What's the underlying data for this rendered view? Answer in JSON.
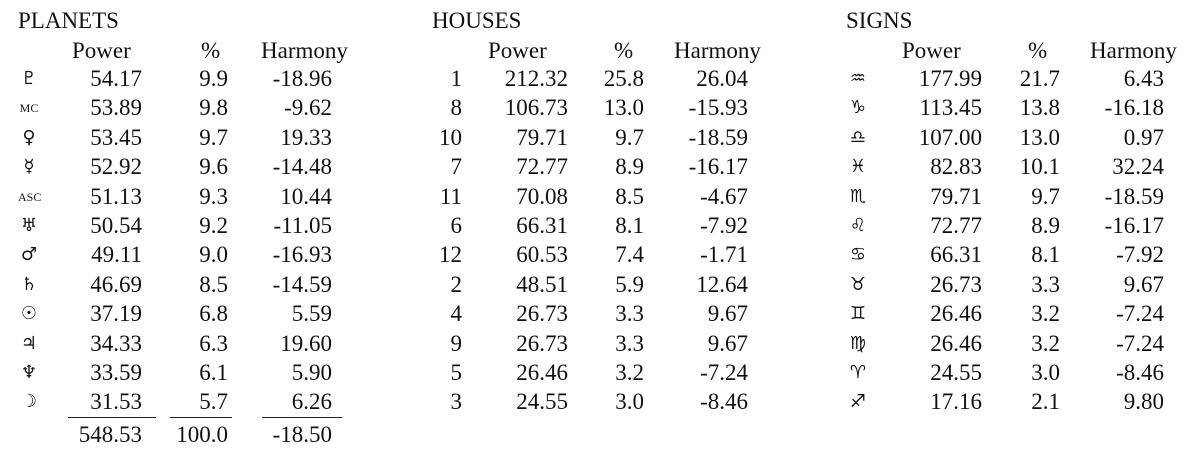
{
  "planets": {
    "title": "PLANETS",
    "headers": {
      "power": "Power",
      "pct": "%",
      "harmony": "Harmony"
    },
    "rows": [
      {
        "label": "♇",
        "power": "54.17",
        "pct": "9.9",
        "harmony": "-18.96"
      },
      {
        "label": "MC",
        "power": "53.89",
        "pct": "9.8",
        "harmony": "-9.62"
      },
      {
        "label": "♀",
        "power": "53.45",
        "pct": "9.7",
        "harmony": "19.33"
      },
      {
        "label": "☿",
        "power": "52.92",
        "pct": "9.6",
        "harmony": "-14.48"
      },
      {
        "label": "ASC",
        "power": "51.13",
        "pct": "9.3",
        "harmony": "10.44"
      },
      {
        "label": "♅",
        "power": "50.54",
        "pct": "9.2",
        "harmony": "-11.05"
      },
      {
        "label": "♂",
        "power": "49.11",
        "pct": "9.0",
        "harmony": "-16.93"
      },
      {
        "label": "♄",
        "power": "46.69",
        "pct": "8.5",
        "harmony": "-14.59"
      },
      {
        "label": "☉",
        "power": "37.19",
        "pct": "6.8",
        "harmony": "5.59"
      },
      {
        "label": "♃",
        "power": "34.33",
        "pct": "6.3",
        "harmony": "19.60"
      },
      {
        "label": "♆",
        "power": "33.59",
        "pct": "6.1",
        "harmony": "5.90"
      },
      {
        "label": "☽",
        "power": "31.53",
        "pct": "5.7",
        "harmony": "6.26"
      }
    ],
    "totals": {
      "power": "548.53",
      "pct": "100.0",
      "harmony": "-18.50"
    }
  },
  "houses": {
    "title": "HOUSES",
    "headers": {
      "power": "Power",
      "pct": "%",
      "harmony": "Harmony"
    },
    "rows": [
      {
        "label": "1",
        "power": "212.32",
        "pct": "25.8",
        "harmony": "26.04"
      },
      {
        "label": "8",
        "power": "106.73",
        "pct": "13.0",
        "harmony": "-15.93"
      },
      {
        "label": "10",
        "power": "79.71",
        "pct": "9.7",
        "harmony": "-18.59"
      },
      {
        "label": "7",
        "power": "72.77",
        "pct": "8.9",
        "harmony": "-16.17"
      },
      {
        "label": "11",
        "power": "70.08",
        "pct": "8.5",
        "harmony": "-4.67"
      },
      {
        "label": "6",
        "power": "66.31",
        "pct": "8.1",
        "harmony": "-7.92"
      },
      {
        "label": "12",
        "power": "60.53",
        "pct": "7.4",
        "harmony": "-1.71"
      },
      {
        "label": "2",
        "power": "48.51",
        "pct": "5.9",
        "harmony": "12.64"
      },
      {
        "label": "4",
        "power": "26.73",
        "pct": "3.3",
        "harmony": "9.67"
      },
      {
        "label": "9",
        "power": "26.73",
        "pct": "3.3",
        "harmony": "9.67"
      },
      {
        "label": "5",
        "power": "26.46",
        "pct": "3.2",
        "harmony": "-7.24"
      },
      {
        "label": "3",
        "power": "24.55",
        "pct": "3.0",
        "harmony": "-8.46"
      }
    ]
  },
  "signs": {
    "title": "SIGNS",
    "headers": {
      "power": "Power",
      "pct": "%",
      "harmony": "Harmony"
    },
    "rows": [
      {
        "label": "♒",
        "power": "177.99",
        "pct": "21.7",
        "harmony": "6.43"
      },
      {
        "label": "♑",
        "power": "113.45",
        "pct": "13.8",
        "harmony": "-16.18"
      },
      {
        "label": "♎",
        "power": "107.00",
        "pct": "13.0",
        "harmony": "0.97"
      },
      {
        "label": "♓",
        "power": "82.83",
        "pct": "10.1",
        "harmony": "32.24"
      },
      {
        "label": "♏",
        "power": "79.71",
        "pct": "9.7",
        "harmony": "-18.59"
      },
      {
        "label": "♌",
        "power": "72.77",
        "pct": "8.9",
        "harmony": "-16.17"
      },
      {
        "label": "♋",
        "power": "66.31",
        "pct": "8.1",
        "harmony": "-7.92"
      },
      {
        "label": "♉",
        "power": "26.73",
        "pct": "3.3",
        "harmony": "9.67"
      },
      {
        "label": "♊",
        "power": "26.46",
        "pct": "3.2",
        "harmony": "-7.24"
      },
      {
        "label": "♍",
        "power": "26.46",
        "pct": "3.2",
        "harmony": "-7.24"
      },
      {
        "label": "♈",
        "power": "24.55",
        "pct": "3.0",
        "harmony": "-8.46"
      },
      {
        "label": "♐",
        "power": "17.16",
        "pct": "2.1",
        "harmony": "9.80"
      }
    ]
  }
}
